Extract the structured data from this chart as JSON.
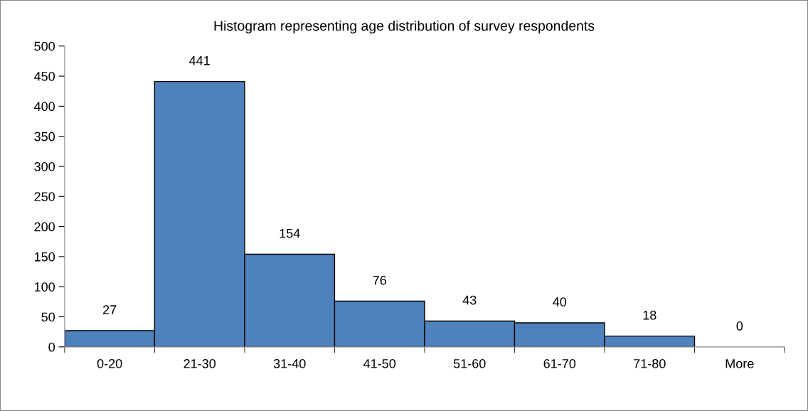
{
  "chart_data": {
    "type": "bar",
    "title": "Histogram representing age distribution of survey respondents",
    "categories": [
      "0-20",
      "21-30",
      "31-40",
      "41-50",
      "51-60",
      "61-70",
      "71-80",
      "More"
    ],
    "values": [
      27,
      441,
      154,
      76,
      43,
      40,
      18,
      0
    ],
    "color": "#4f81bd",
    "ylim": [
      0,
      500
    ],
    "yticks": [
      0,
      50,
      100,
      150,
      200,
      250,
      300,
      350,
      400,
      450,
      500
    ],
    "data_labels": true,
    "grid": false,
    "legend": false
  }
}
